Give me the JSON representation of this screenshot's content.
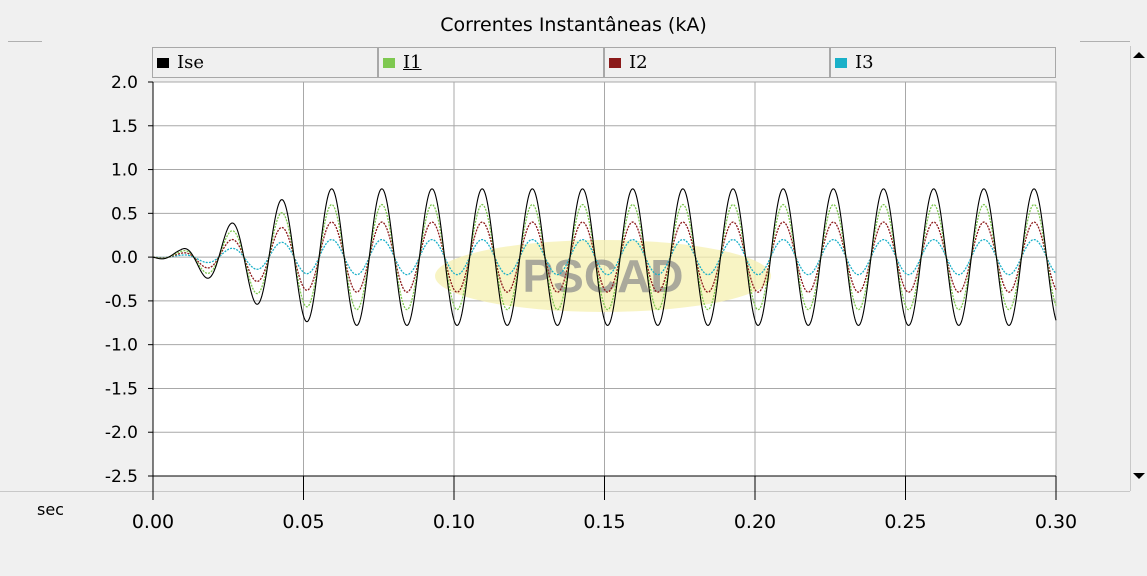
{
  "chart_data": {
    "type": "line",
    "title": "Correntes Instantâneas (kA)",
    "xlabel": "sec",
    "xlim": [
      0.0,
      0.3
    ],
    "ylim": [
      -2.5,
      2.0
    ],
    "xticks": [
      0.0,
      0.05,
      0.1,
      0.15,
      0.2,
      0.25,
      0.3
    ],
    "xtick_labels": [
      "0.00",
      "0.05",
      "0.10",
      "0.15",
      "0.20",
      "0.25",
      "0.30"
    ],
    "yticks": [
      2.0,
      1.5,
      1.0,
      0.5,
      0.0,
      -0.5,
      -1.0,
      -1.5,
      -2.0,
      -2.5
    ],
    "ytick_labels": [
      "2.0",
      "1.5",
      "1.0",
      "0.5",
      "0.0",
      "-0.5",
      "-1.0",
      "-1.5",
      "-2.0",
      "-2.5"
    ],
    "grid": true,
    "legend_position": "top",
    "watermark": "PSCAD",
    "frequency_hz": 60,
    "series": [
      {
        "name": "Ise",
        "color": "#000000",
        "steady_amplitude": 0.78,
        "peak_x": [
          0.009,
          0.024,
          0.039,
          0.0555,
          0.072,
          0.089,
          0.105,
          0.122,
          0.139,
          0.155,
          0.172,
          0.189,
          0.205,
          0.222,
          0.239,
          0.255,
          0.272,
          0.289
        ],
        "peak_y": [
          0.08,
          0.35,
          0.62,
          0.78,
          0.78,
          0.78,
          0.78,
          0.78,
          0.78,
          0.78,
          0.78,
          0.78,
          0.78,
          0.78,
          0.78,
          0.78,
          0.78,
          0.78
        ]
      },
      {
        "name": "I1",
        "color": "#7ec850",
        "steady_amplitude": 0.6,
        "peak_x": [
          0.009,
          0.024,
          0.039,
          0.0555,
          0.072,
          0.089,
          0.105,
          0.122,
          0.139,
          0.155,
          0.172,
          0.189,
          0.205,
          0.222,
          0.239,
          0.255,
          0.272,
          0.289
        ],
        "peak_y": [
          0.06,
          0.27,
          0.48,
          0.6,
          0.6,
          0.6,
          0.6,
          0.6,
          0.6,
          0.6,
          0.6,
          0.6,
          0.6,
          0.6,
          0.6,
          0.6,
          0.6,
          0.6
        ]
      },
      {
        "name": "I2",
        "color": "#8b1a1a",
        "steady_amplitude": 0.4,
        "peak_x": [
          0.009,
          0.024,
          0.039,
          0.0555,
          0.072,
          0.089,
          0.105,
          0.122,
          0.139,
          0.155,
          0.172,
          0.189,
          0.205,
          0.222,
          0.239,
          0.255,
          0.272,
          0.289
        ],
        "peak_y": [
          0.04,
          0.18,
          0.32,
          0.4,
          0.4,
          0.4,
          0.4,
          0.4,
          0.4,
          0.4,
          0.4,
          0.4,
          0.4,
          0.4,
          0.4,
          0.4,
          0.4,
          0.4
        ]
      },
      {
        "name": "I3",
        "color": "#1ab0c8",
        "steady_amplitude": 0.2,
        "peak_x": [
          0.009,
          0.024,
          0.039,
          0.0555,
          0.072,
          0.089,
          0.105,
          0.122,
          0.139,
          0.155,
          0.172,
          0.189,
          0.205,
          0.222,
          0.239,
          0.255,
          0.272,
          0.289
        ],
        "peak_y": [
          0.02,
          0.09,
          0.16,
          0.2,
          0.2,
          0.2,
          0.2,
          0.2,
          0.2,
          0.2,
          0.2,
          0.2,
          0.2,
          0.2,
          0.2,
          0.2,
          0.2,
          0.2
        ]
      }
    ]
  }
}
